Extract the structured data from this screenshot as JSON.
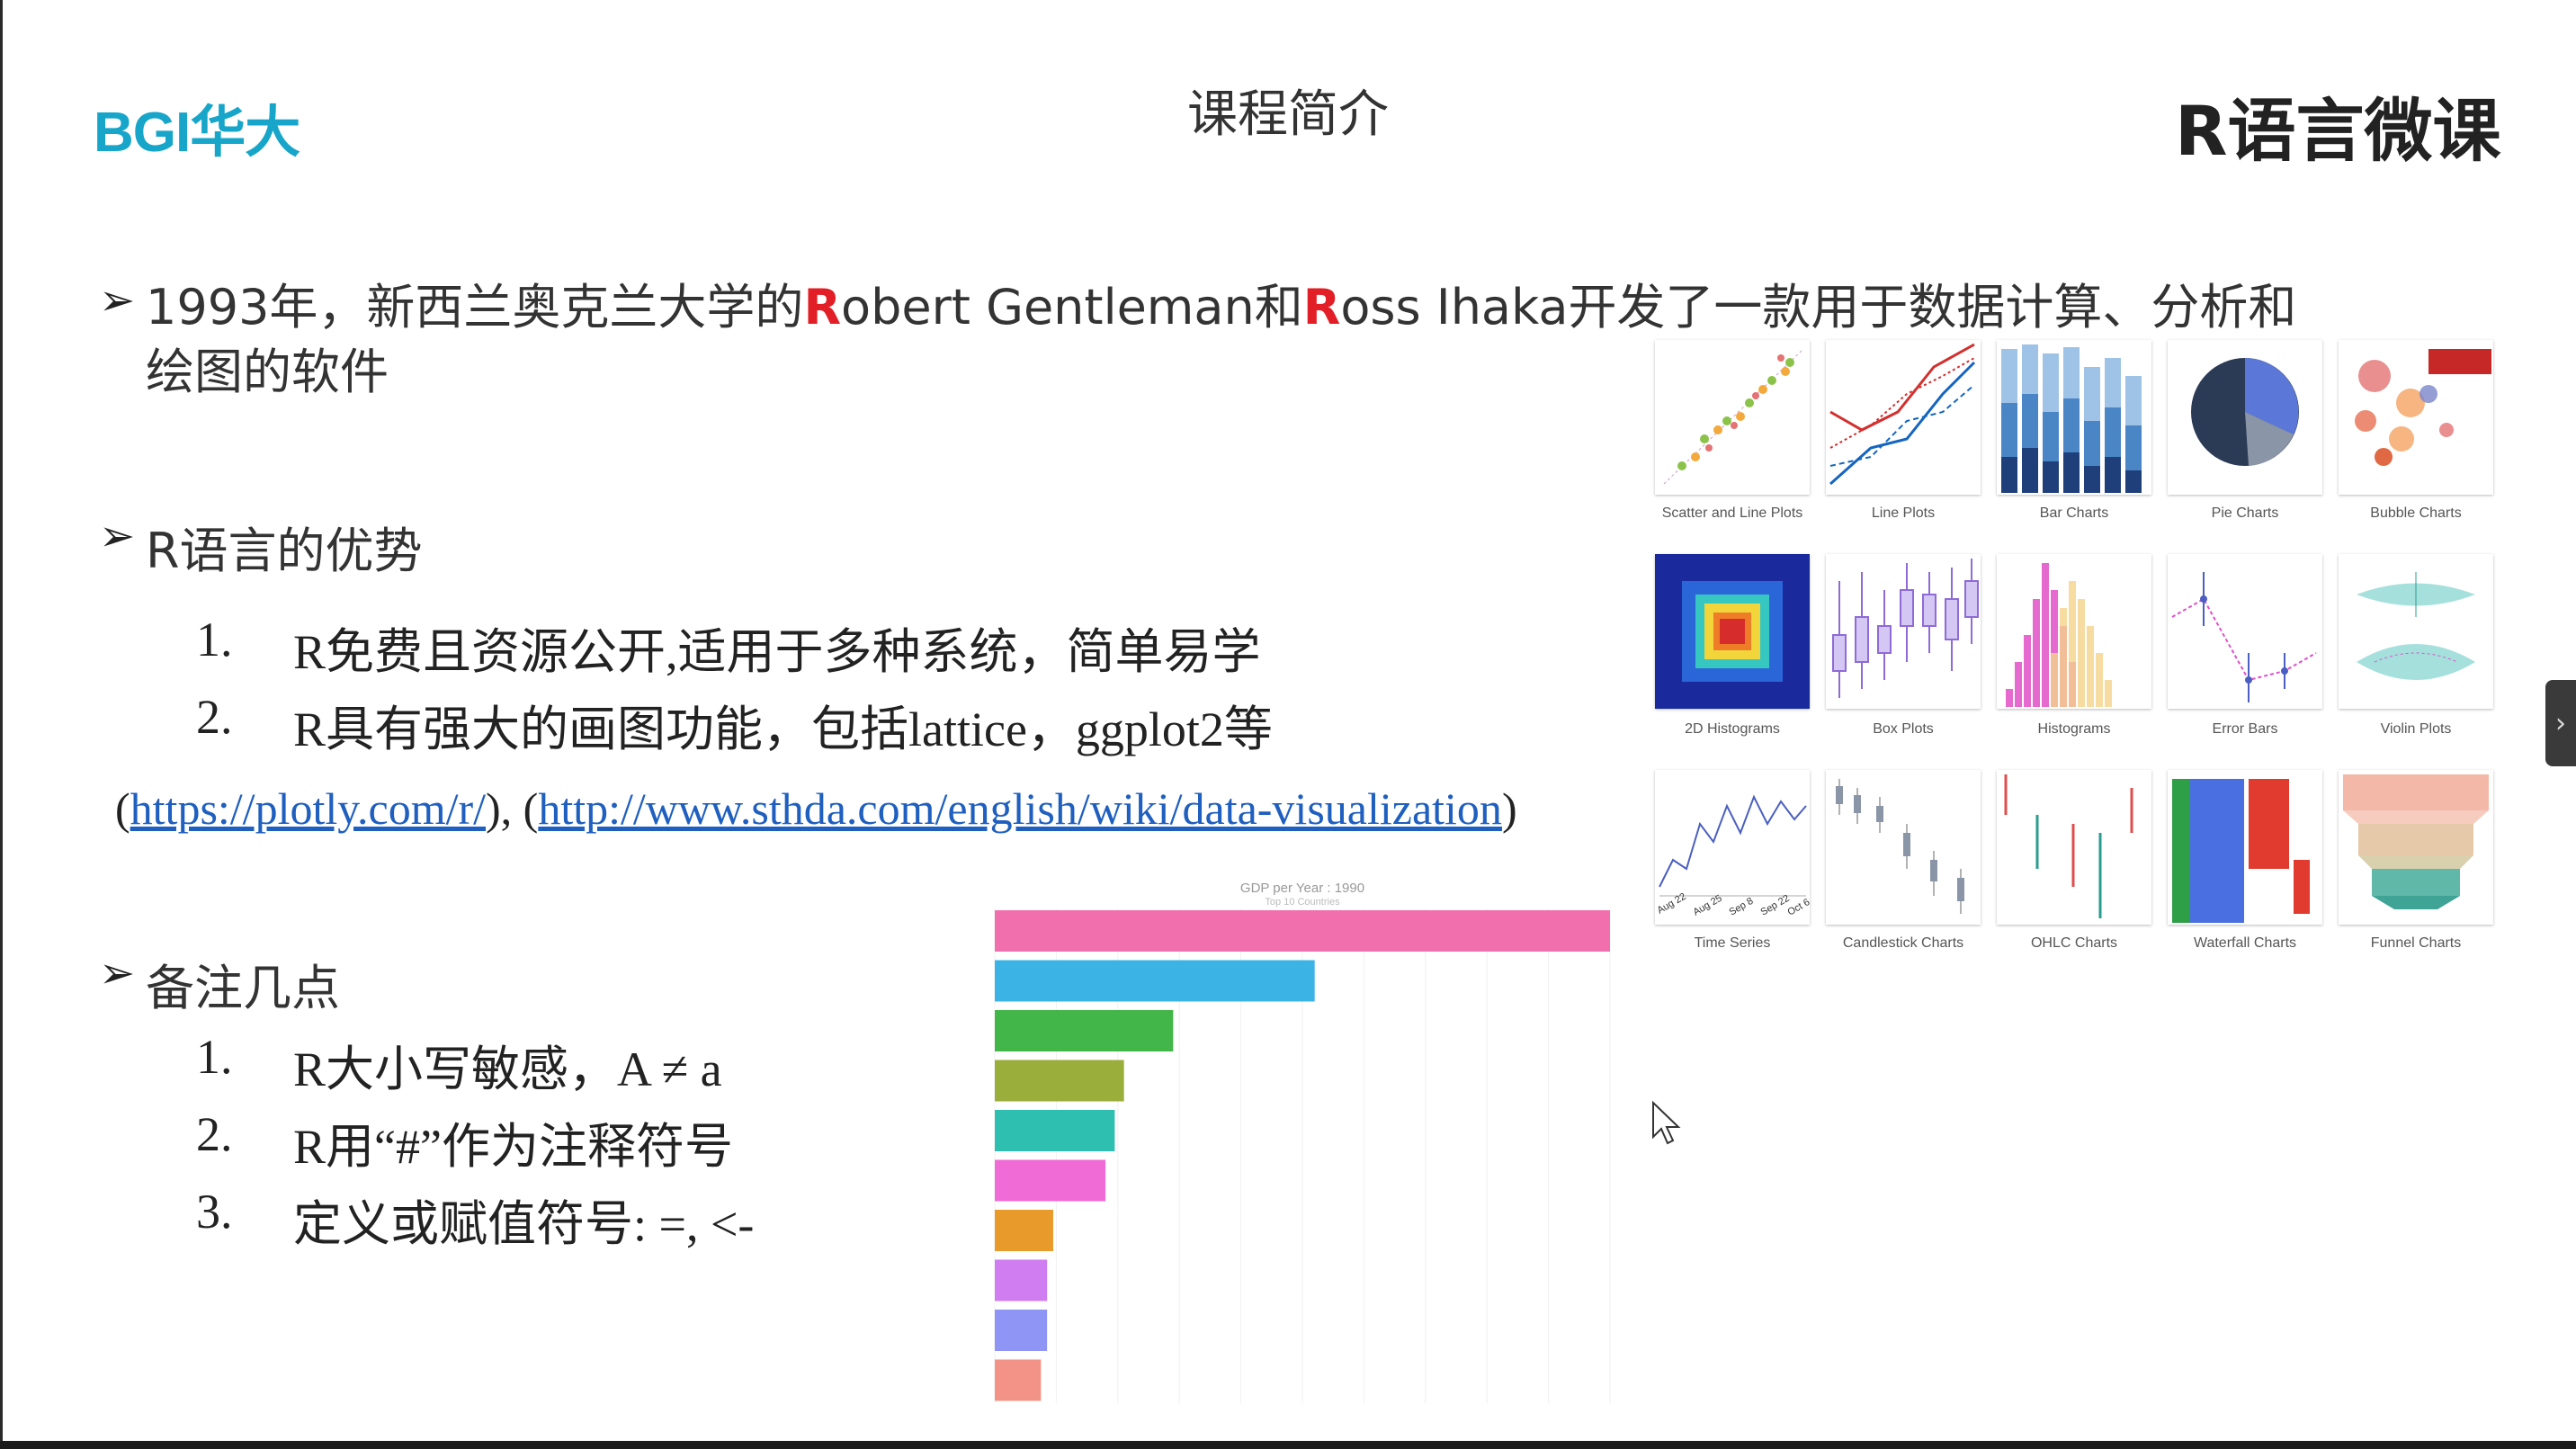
{
  "header": {
    "logo": "BGI华大",
    "slide_title": "课程简介",
    "course_title": "R语言微课"
  },
  "bullets": {
    "history": {
      "part1": "1993年，新西兰奥克兰大学的",
      "r1": "R",
      "part2": "obert Gentleman和",
      "r2": "R",
      "part3": "oss Ihaka开发了一款用于数据计算、分析和",
      "part4": "绘图的软件"
    },
    "advantages_title": "R语言的优势",
    "advantages": [
      {
        "num": "1.",
        "text": "R免费且资源公开,适用于多种系统，简单易学"
      },
      {
        "num": "2.",
        "text": "R具有强大的画图功能，包括lattice，ggplot2等"
      }
    ],
    "links": {
      "open1": "(",
      "link1": "https://plotly.com/r/",
      "mid": "), (",
      "link2": "http://www.sthda.com/english/wiki/data-visualization",
      "close": ")"
    },
    "notes_title": "备注几点",
    "notes": [
      {
        "num": "1.",
        "text": "R大小写敏感，A ≠ a"
      },
      {
        "num": "2.",
        "text": "R用“#”作为注释符号"
      },
      {
        "num": "3.",
        "text": "定义或赋值符号: =, <-"
      }
    ]
  },
  "gallery": [
    {
      "label": "Scatter and Line Plots",
      "icon": "scatter-icon"
    },
    {
      "label": "Line Plots",
      "icon": "line-icon"
    },
    {
      "label": "Bar Charts",
      "icon": "bar-icon"
    },
    {
      "label": "Pie Charts",
      "icon": "pie-icon"
    },
    {
      "label": "Bubble Charts",
      "icon": "bubble-icon"
    },
    {
      "label": "2D Histograms",
      "icon": "heatmap-icon"
    },
    {
      "label": "Box Plots",
      "icon": "boxplot-icon"
    },
    {
      "label": "Histograms",
      "icon": "histogram-icon"
    },
    {
      "label": "Error Bars",
      "icon": "errorbar-icon"
    },
    {
      "label": "Violin Plots",
      "icon": "violin-icon"
    },
    {
      "label": "Time Series",
      "icon": "timeseries-icon"
    },
    {
      "label": "Candlestick Charts",
      "icon": "candlestick-icon"
    },
    {
      "label": "OHLC Charts",
      "icon": "ohlc-icon"
    },
    {
      "label": "Waterfall Charts",
      "icon": "waterfall-icon"
    },
    {
      "label": "Funnel Charts",
      "icon": "funnel-icon"
    }
  ],
  "chart_data": {
    "type": "bar",
    "title": "GDP per Year : 1990",
    "subtitle": "Top 10 Countries",
    "orientation": "horizontal",
    "values": [
      100,
      52,
      29,
      21,
      19.5,
      18,
      9.5,
      8.5,
      8.5,
      7.5
    ],
    "colors": [
      "#f26fae",
      "#3bb4e5",
      "#43b649",
      "#9aae3b",
      "#2fbfb1",
      "#f06bd6",
      "#e89a2b",
      "#cf7df0",
      "#8f95f5",
      "#f39286"
    ]
  },
  "side_tab": {
    "icon": "chevron-right-icon",
    "glyph": "›"
  }
}
